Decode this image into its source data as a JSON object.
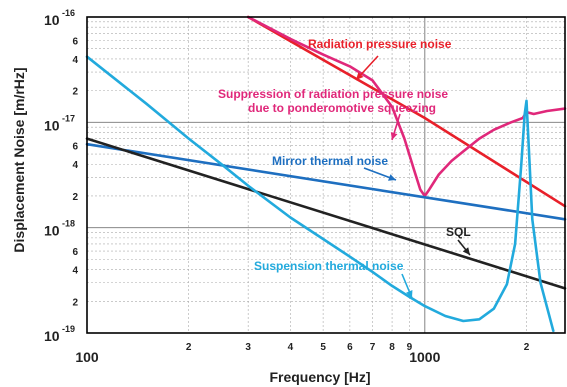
{
  "chart_data": {
    "type": "line",
    "xlabel": "Frequency [Hz]",
    "ylabel": "Displacement Noise [m/rHz]",
    "x_scale": "log",
    "y_scale": "log",
    "xlim": [
      100,
      2600
    ],
    "ylim": [
      1e-19,
      1e-16
    ],
    "grid": true,
    "x_major_ticks": [
      {
        "value": 100,
        "label": "100"
      },
      {
        "value": 1000,
        "label": "1000"
      }
    ],
    "x_minor_ticks": [
      {
        "value": 200,
        "label": "2"
      },
      {
        "value": 300,
        "label": "3"
      },
      {
        "value": 400,
        "label": "4"
      },
      {
        "value": 500,
        "label": "5"
      },
      {
        "value": 600,
        "label": "6"
      },
      {
        "value": 700,
        "label": "7"
      },
      {
        "value": 800,
        "label": "8"
      },
      {
        "value": 900,
        "label": "9"
      },
      {
        "value": 2000,
        "label": "2"
      }
    ],
    "y_major_ticks": [
      {
        "value": 1e-19,
        "base": "10",
        "exp": "-19"
      },
      {
        "value": 1e-18,
        "base": "10",
        "exp": "-18"
      },
      {
        "value": 1e-17,
        "base": "10",
        "exp": "-17"
      },
      {
        "value": 1e-16,
        "base": "10",
        "exp": "-16"
      }
    ],
    "y_minor_ticks": [
      {
        "value": 2e-19,
        "label": "2"
      },
      {
        "value": 4e-19,
        "label": "4"
      },
      {
        "value": 6e-19,
        "label": "6"
      },
      {
        "value": 2e-18,
        "label": "2"
      },
      {
        "value": 4e-18,
        "label": "4"
      },
      {
        "value": 6e-18,
        "label": "6"
      },
      {
        "value": 2e-17,
        "label": "2"
      },
      {
        "value": 4e-17,
        "label": "4"
      },
      {
        "value": 6e-17,
        "label": "6"
      }
    ],
    "series": [
      {
        "name": "Radiation pressure noise",
        "color": "#e8202a",
        "points": [
          [
            300,
            1e-16
          ],
          [
            1000,
            1.1e-17
          ],
          [
            2600,
            1.6e-18
          ]
        ]
      },
      {
        "name": "Suppression of radiation pressure noise due to ponderomotive squeezing",
        "color": "#e0287a",
        "points": [
          [
            300,
            1e-16
          ],
          [
            400,
            6.2e-17
          ],
          [
            500,
            4.4e-17
          ],
          [
            600,
            3.4e-17
          ],
          [
            700,
            2.5e-17
          ],
          [
            800,
            1.4e-17
          ],
          [
            870,
            7e-18
          ],
          [
            930,
            3.5e-18
          ],
          [
            970,
            2.3e-18
          ],
          [
            1000,
            2e-18
          ],
          [
            1030,
            2.3e-18
          ],
          [
            1100,
            3.2e-18
          ],
          [
            1200,
            4.3e-18
          ],
          [
            1300,
            5.3e-18
          ],
          [
            1450,
            7e-18
          ],
          [
            1600,
            8.5e-18
          ],
          [
            1800,
            1e-17
          ],
          [
            1950,
            1.1e-17
          ],
          [
            2000,
            1.25e-17
          ],
          [
            2100,
            1.2e-17
          ],
          [
            2300,
            1.28e-17
          ],
          [
            2600,
            1.35e-17
          ]
        ]
      },
      {
        "name": "Mirror thermal noise",
        "color": "#1e6fc0",
        "points": [
          [
            100,
            6.2e-18
          ],
          [
            2600,
            1.2e-18
          ]
        ]
      },
      {
        "name": "SQL",
        "color": "#222222",
        "points": [
          [
            100,
            7e-18
          ],
          [
            2600,
            2.65e-19
          ]
        ]
      },
      {
        "name": "Suspension thermal noise",
        "color": "#22aadd",
        "points": [
          [
            100,
            4.2e-17
          ],
          [
            150,
            1.5e-17
          ],
          [
            200,
            7e-18
          ],
          [
            250,
            4e-18
          ],
          [
            300,
            2.5e-18
          ],
          [
            400,
            1.25e-18
          ],
          [
            500,
            7.8e-19
          ],
          [
            600,
            5.3e-19
          ],
          [
            700,
            3.8e-19
          ],
          [
            800,
            2.8e-19
          ],
          [
            900,
            2.2e-19
          ],
          [
            1000,
            1.8e-19
          ],
          [
            1150,
            1.45e-19
          ],
          [
            1300,
            1.3e-19
          ],
          [
            1450,
            1.35e-19
          ],
          [
            1600,
            1.7e-19
          ],
          [
            1750,
            2.9e-19
          ],
          [
            1850,
            7e-19
          ],
          [
            1930,
            4e-18
          ],
          [
            1975,
            1.2e-17
          ],
          [
            2000,
            1.6e-17
          ],
          [
            2030,
            6e-18
          ],
          [
            2080,
            1.2e-18
          ],
          [
            2200,
            3e-19
          ],
          [
            2400,
            1.05e-19
          ]
        ]
      }
    ],
    "annotations": [
      {
        "text": "Radiation pressure noise",
        "color": "#e8202a"
      },
      {
        "text": "Suppression of radiation pressure noise",
        "color": "#e0287a"
      },
      {
        "text": "due to ponderomotive squeezing",
        "color": "#e0287a"
      },
      {
        "text": "Mirror thermal noise",
        "color": "#1e6fc0"
      },
      {
        "text": "SQL",
        "color": "#222222"
      },
      {
        "text": "Suspension thermal noise",
        "color": "#22aadd"
      }
    ]
  }
}
